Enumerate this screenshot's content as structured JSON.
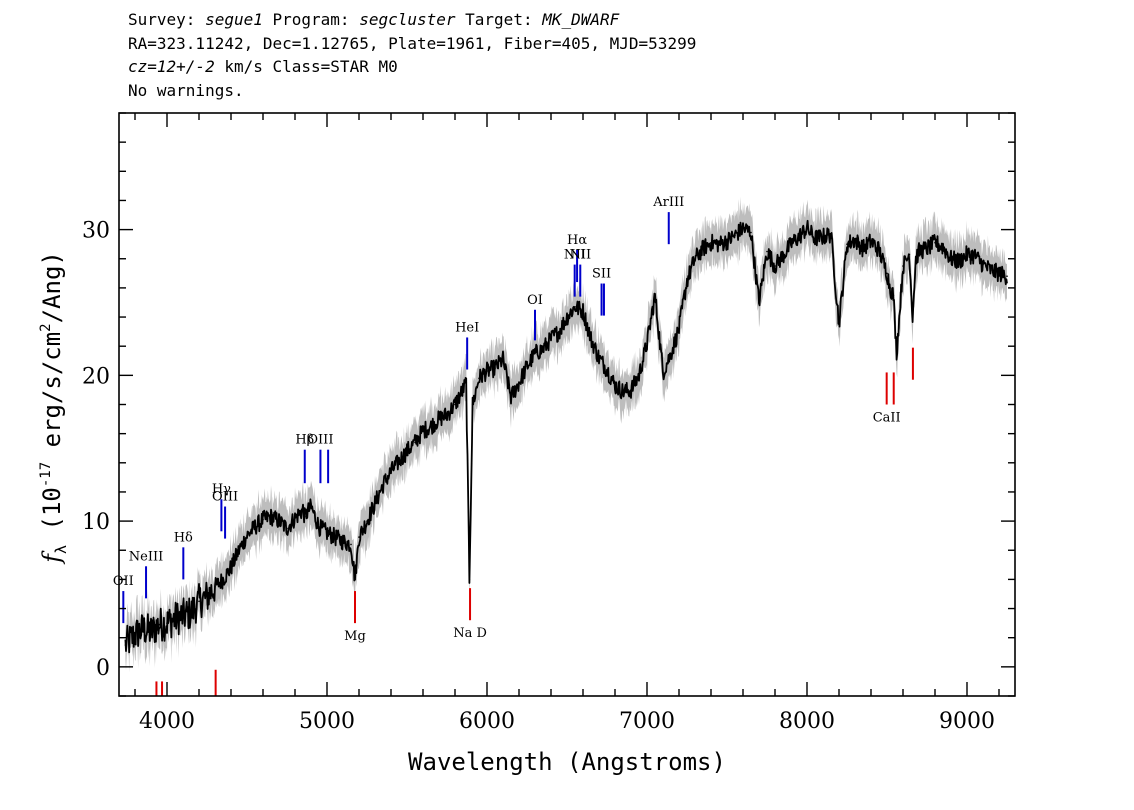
{
  "header": {
    "line1": {
      "survey_label": "Survey: ",
      "survey": "segue1",
      "program_label": " Program: ",
      "program": "segcluster",
      "target_label": " Target: ",
      "target": "MK_DWARF"
    },
    "line2": "RA=323.11242, Dec=1.12765, Plate=1961, Fiber=405, MJD=53299",
    "line3": {
      "cz": "cz=12+/-2",
      "rest": " km/s Class=STAR M0"
    },
    "line4": "No warnings."
  },
  "chart_data": {
    "type": "line",
    "xlabel": "Wavelength (Angstroms)",
    "ylabel": "f_λ (10^-17 erg/s/cm^2/Ang)",
    "xlim": [
      3700,
      9300
    ],
    "ylim": [
      -2,
      38
    ],
    "xticks": [
      4000,
      5000,
      6000,
      7000,
      8000,
      9000
    ],
    "yticks": [
      0,
      10,
      20,
      30
    ],
    "colors": {
      "flux": "#000000",
      "error": "#bdbdbd",
      "emission": "#0000cc",
      "absorption": "#dd0000"
    },
    "series": [
      {
        "x": [
          3740,
          3800,
          3850,
          3900,
          3950,
          4000,
          4050,
          4100,
          4150,
          4200,
          4250,
          4300,
          4350,
          4400,
          4450,
          4500,
          4550,
          4600,
          4650,
          4700,
          4750,
          4800,
          4850,
          4860,
          4900,
          4950,
          5000,
          5050,
          5100,
          5150,
          5175,
          5200,
          5250,
          5300,
          5350,
          5400,
          5450,
          5500,
          5550,
          5600,
          5650,
          5700,
          5750,
          5800,
          5850,
          5870,
          5890,
          5910,
          5950,
          6000,
          6050,
          6100,
          6150,
          6200,
          6250,
          6300,
          6350,
          6400,
          6450,
          6500,
          6550,
          6600,
          6650,
          6700,
          6750,
          6800,
          6850,
          6900,
          6950,
          7000,
          7050,
          7100,
          7150,
          7200,
          7250,
          7300,
          7350,
          7400,
          7450,
          7500,
          7550,
          7600,
          7650,
          7700,
          7750,
          7800,
          7850,
          7900,
          7950,
          8000,
          8050,
          8100,
          8150,
          8200,
          8250,
          8300,
          8350,
          8400,
          8450,
          8500,
          8520,
          8540,
          8560,
          8600,
          8640,
          8660,
          8680,
          8700,
          8750,
          8800,
          8850,
          8900,
          8950,
          9000,
          9050,
          9100,
          9150,
          9200,
          9250
        ],
        "y": [
          1.5,
          2.2,
          2.6,
          2.4,
          2.9,
          3.0,
          3.3,
          3.5,
          3.7,
          4.5,
          4.8,
          5.5,
          6.0,
          6.8,
          8.0,
          9.0,
          9.6,
          10.1,
          10.3,
          10.0,
          9.5,
          10.2,
          10.8,
          10.3,
          11.0,
          9.6,
          9.2,
          8.9,
          8.6,
          8.4,
          6.0,
          8.9,
          10.0,
          11.2,
          12.5,
          13.4,
          14.1,
          14.8,
          15.4,
          16.2,
          16.5,
          17.0,
          17.3,
          18.0,
          19.0,
          19.5,
          6.0,
          18.0,
          19.8,
          20.3,
          20.5,
          21.1,
          18.5,
          19.5,
          20.6,
          21.5,
          21.8,
          22.5,
          23.0,
          24.0,
          24.7,
          24.4,
          22.5,
          21.2,
          20.4,
          19.3,
          18.9,
          19.0,
          20.0,
          22.2,
          25.5,
          20.2,
          21.5,
          23.2,
          26.5,
          28.0,
          28.7,
          29.1,
          29.0,
          29.2,
          29.6,
          30.1,
          29.8,
          25.0,
          28.5,
          27.5,
          28.2,
          29.0,
          29.5,
          30.1,
          29.4,
          29.5,
          29.7,
          23.5,
          29.0,
          29.3,
          28.7,
          29.2,
          28.6,
          27.0,
          26.0,
          25.5,
          21.5,
          27.5,
          28.3,
          24.0,
          28.0,
          28.5,
          28.7,
          29.1,
          28.8,
          28.0,
          27.8,
          28.3,
          28.2,
          27.6,
          27.2,
          27.0,
          26.8
        ]
      }
    ],
    "emission_lines": [
      {
        "label": "OII",
        "x": 3727,
        "ytop": 5.2,
        "ybot": 3.0
      },
      {
        "label": "NeIII",
        "x": 3869,
        "ytop": 6.9,
        "ybot": 4.7
      },
      {
        "label": "Hδ",
        "x": 4102,
        "ytop": 8.2,
        "ybot": 6.0
      },
      {
        "label": "Hγ",
        "x": 4340,
        "ytop": 11.5,
        "ybot": 9.3
      },
      {
        "label": "OIII",
        "x": 4363,
        "ytop": 11.0,
        "ybot": 8.8
      },
      {
        "label": "Hβ",
        "x": 4861,
        "ytop": 14.9,
        "ybot": 12.6
      },
      {
        "label": "OIII",
        "x": 4959,
        "ytop": 14.9,
        "ybot": 12.6
      },
      {
        "label": "",
        "x": 5007,
        "ytop": 14.9,
        "ybot": 12.6
      },
      {
        "label": "HeI",
        "x": 5876,
        "ytop": 22.6,
        "ybot": 20.4
      },
      {
        "label": "OI",
        "x": 6300,
        "ytop": 24.5,
        "ybot": 22.4
      },
      {
        "label": "NII",
        "x": 6548,
        "ytop": 27.6,
        "ybot": 25.4
      },
      {
        "label": "Hα",
        "x": 6563,
        "ytop": 28.6,
        "ybot": 26.4
      },
      {
        "label": "NII",
        "x": 6583,
        "ytop": 27.6,
        "ybot": 25.4
      },
      {
        "label": "SII",
        "x": 6716,
        "ytop": 26.3,
        "ybot": 24.1
      },
      {
        "label": "",
        "x": 6731,
        "ytop": 26.3,
        "ybot": 24.1
      },
      {
        "label": "ArIII",
        "x": 7136,
        "ytop": 31.2,
        "ybot": 29.0
      }
    ],
    "absorption_lines": [
      {
        "label": "",
        "x": 3934,
        "ytop": -1.0,
        "ybot": -3.0
      },
      {
        "label": "",
        "x": 3969,
        "ytop": -1.0,
        "ybot": -3.0
      },
      {
        "label": "",
        "x": 4304,
        "ytop": -0.2,
        "ybot": -2.4
      },
      {
        "label": "Mg",
        "x": 5175,
        "ytop": 5.2,
        "ybot": 3.0
      },
      {
        "label": "Na D",
        "x": 5894,
        "ytop": 5.4,
        "ybot": 3.2
      },
      {
        "label": "CaII",
        "x": 8498,
        "ytop": 20.2,
        "ybot": 18.0
      },
      {
        "label": "",
        "x": 8542,
        "ytop": 20.2,
        "ybot": 18.0
      },
      {
        "label": "",
        "x": 8662,
        "ytop": 21.9,
        "ybot": 19.7
      }
    ]
  }
}
